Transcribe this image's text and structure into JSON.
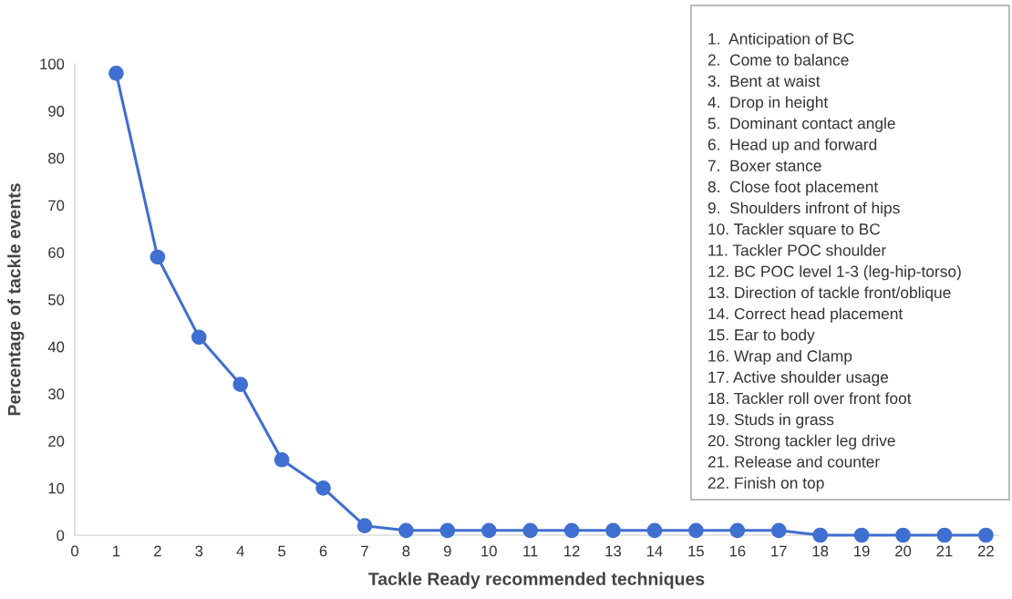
{
  "chart_data": {
    "type": "line",
    "xlabel": "Tackle Ready recommended techniques",
    "ylabel": "Percentage of tackle events",
    "x": [
      1,
      2,
      3,
      4,
      5,
      6,
      7,
      8,
      9,
      10,
      11,
      12,
      13,
      14,
      15,
      16,
      17,
      18,
      19,
      20,
      21,
      22
    ],
    "series": [
      {
        "color": "#3f6fd1",
        "values": [
          98,
          59,
          42,
          32,
          16,
          10,
          2,
          1,
          1,
          1,
          1,
          1,
          1,
          1,
          1,
          1,
          1,
          0,
          0,
          0,
          0,
          0
        ]
      }
    ],
    "xlim": [
      0,
      22.3
    ],
    "xticks": [
      0,
      1,
      2,
      3,
      4,
      5,
      6,
      7,
      8,
      9,
      10,
      11,
      12,
      13,
      14,
      15,
      16,
      17,
      18,
      19,
      20,
      21,
      22
    ],
    "ylim": [
      0,
      100
    ],
    "yticks": [
      0,
      10,
      20,
      30,
      40,
      50,
      60,
      70,
      80,
      90,
      100
    ],
    "grid": false,
    "marker": "circle",
    "line_style": "solid",
    "annotations": [
      "1.  Anticipation of BC",
      "2.  Come to balance",
      "3.  Bent at waist",
      "4.  Drop in height",
      "5.  Dominant contact angle",
      "6.  Head up and forward",
      "7.  Boxer stance",
      "8.  Close foot placement",
      "9.  Shoulders infront of hips",
      "10. Tackler square to BC",
      "11. Tackler POC shoulder",
      "12. BC POC level 1-3 (leg-hip-torso)",
      "13. Direction of tackle front/oblique",
      "14. Correct head placement",
      "15. Ear to body",
      "16. Wrap and Clamp",
      "17. Active shoulder usage",
      "18. Tackler roll over front foot",
      "19. Studs in grass",
      "20. Strong tackler leg drive",
      "21. Release and counter",
      "22. Finish on top"
    ]
  }
}
